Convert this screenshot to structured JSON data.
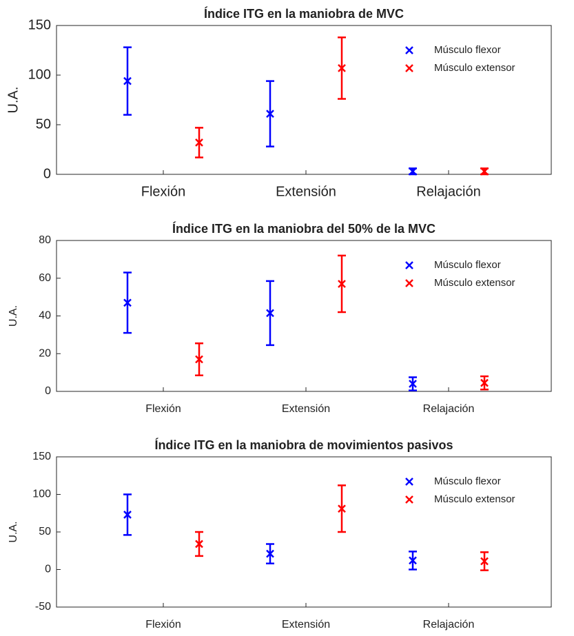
{
  "chart_data": [
    {
      "type": "errorbar",
      "title": "Índice ITG en la maniobra de MVC",
      "ylabel": "U.A.",
      "categories": [
        "Flexión",
        "Extensión",
        "Relajación"
      ],
      "series": [
        {
          "name": "Músculo flexor",
          "color": "#0000ff",
          "values": [
            94,
            61,
            3
          ],
          "errors": [
            34,
            33,
            3
          ]
        },
        {
          "name": "Músculo extensor",
          "color": "#ff0000",
          "values": [
            32,
            107,
            3
          ],
          "errors": [
            15,
            31,
            3
          ]
        }
      ],
      "ylim": [
        0,
        150
      ],
      "yticks": [
        0,
        50,
        100,
        150
      ],
      "legend": "upper right"
    },
    {
      "type": "errorbar",
      "title": "Índice ITG en la maniobra del 50% de la MVC",
      "ylabel": "U.A.",
      "categories": [
        "Flexión",
        "Extensión",
        "Relajación"
      ],
      "series": [
        {
          "name": "Músculo flexor",
          "color": "#0000ff",
          "values": [
            47,
            41.5,
            4
          ],
          "errors": [
            16,
            17,
            3.5
          ]
        },
        {
          "name": "Músculo extensor",
          "color": "#ff0000",
          "values": [
            17,
            57,
            4.5
          ],
          "errors": [
            8.5,
            15,
            3.5
          ]
        }
      ],
      "ylim": [
        0,
        80
      ],
      "yticks": [
        0,
        20,
        40,
        60,
        80
      ],
      "legend": "upper right"
    },
    {
      "type": "errorbar",
      "title": "Índice ITG en la maniobra de movimientos pasivos",
      "ylabel": "U.A.",
      "categories": [
        "Flexión",
        "Extensión",
        "Relajación"
      ],
      "series": [
        {
          "name": "Músculo flexor",
          "color": "#0000ff",
          "values": [
            73,
            21,
            12
          ],
          "errors": [
            27,
            13,
            12
          ]
        },
        {
          "name": "Músculo extensor",
          "color": "#ff0000",
          "values": [
            34,
            81,
            11
          ],
          "errors": [
            16,
            31,
            12
          ]
        }
      ],
      "ylim": [
        -50,
        150
      ],
      "yticks": [
        -50,
        0,
        50,
        100,
        150
      ],
      "legend": "upper right"
    }
  ]
}
